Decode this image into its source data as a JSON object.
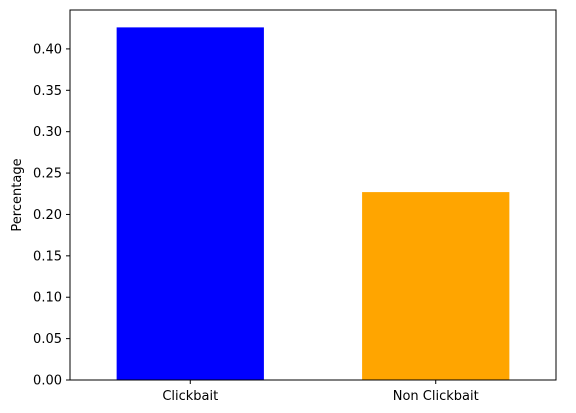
{
  "chart_data": {
    "type": "bar",
    "title": "",
    "xlabel": "",
    "ylabel": "Percentage",
    "categories": [
      "Clickbait",
      "Non Clickbait"
    ],
    "values": [
      0.426,
      0.227
    ],
    "colors": [
      "#0000ff",
      "#ffa500"
    ],
    "ylim": [
      0,
      0.447
    ],
    "yticks": [
      0.0,
      0.05,
      0.1,
      0.15,
      0.2,
      0.25,
      0.3,
      0.35,
      0.4
    ],
    "ytick_labels": [
      "0.00",
      "0.05",
      "0.10",
      "0.15",
      "0.20",
      "0.25",
      "0.30",
      "0.35",
      "0.40"
    ],
    "grid": false,
    "legend": "none"
  }
}
